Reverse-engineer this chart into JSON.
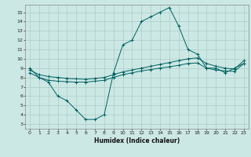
{
  "xlabel": "Humidex (Indice chaleur)",
  "bg_color": "#cce8e4",
  "grid_color": "#aaccc8",
  "line_color": "#006060",
  "xlim": [
    -0.5,
    23.5
  ],
  "ylim": [
    2.5,
    15.8
  ],
  "xticks": [
    0,
    1,
    2,
    3,
    4,
    5,
    6,
    7,
    8,
    9,
    10,
    11,
    12,
    13,
    14,
    15,
    16,
    17,
    18,
    19,
    20,
    21,
    22,
    23
  ],
  "yticks": [
    3,
    4,
    5,
    6,
    7,
    8,
    9,
    10,
    11,
    12,
    13,
    14,
    15
  ],
  "series": [
    {
      "x": [
        0,
        1,
        2,
        3,
        4,
        5,
        6,
        7,
        8,
        9,
        10,
        11,
        12,
        13,
        14,
        15,
        16,
        17,
        18,
        19,
        20,
        21,
        22,
        23
      ],
      "y": [
        9.0,
        8.0,
        7.5,
        6.0,
        5.5,
        4.5,
        3.5,
        3.5,
        4.0,
        8.5,
        11.5,
        12.0,
        14.0,
        14.5,
        15.0,
        15.5,
        13.5,
        11.0,
        10.5,
        9.0,
        9.0,
        8.5,
        9.0,
        9.5
      ]
    },
    {
      "x": [
        0,
        1,
        2,
        3,
        4,
        5,
        6,
        7,
        8,
        9,
        10,
        11,
        12,
        13,
        14,
        15,
        16,
        17,
        18,
        19,
        20,
        21,
        22,
        23
      ],
      "y": [
        8.8,
        8.3,
        8.1,
        8.0,
        7.9,
        7.85,
        7.8,
        7.9,
        8.0,
        8.3,
        8.6,
        8.8,
        9.0,
        9.2,
        9.4,
        9.6,
        9.8,
        10.0,
        10.1,
        9.5,
        9.2,
        9.0,
        8.9,
        9.8
      ]
    },
    {
      "x": [
        0,
        1,
        2,
        3,
        4,
        5,
        6,
        7,
        8,
        9,
        10,
        11,
        12,
        13,
        14,
        15,
        16,
        17,
        18,
        19,
        20,
        21,
        22,
        23
      ],
      "y": [
        8.5,
        8.0,
        7.7,
        7.6,
        7.55,
        7.5,
        7.5,
        7.6,
        7.7,
        8.0,
        8.3,
        8.5,
        8.7,
        8.85,
        9.0,
        9.15,
        9.3,
        9.5,
        9.55,
        9.0,
        8.8,
        8.7,
        8.65,
        9.5
      ]
    }
  ]
}
